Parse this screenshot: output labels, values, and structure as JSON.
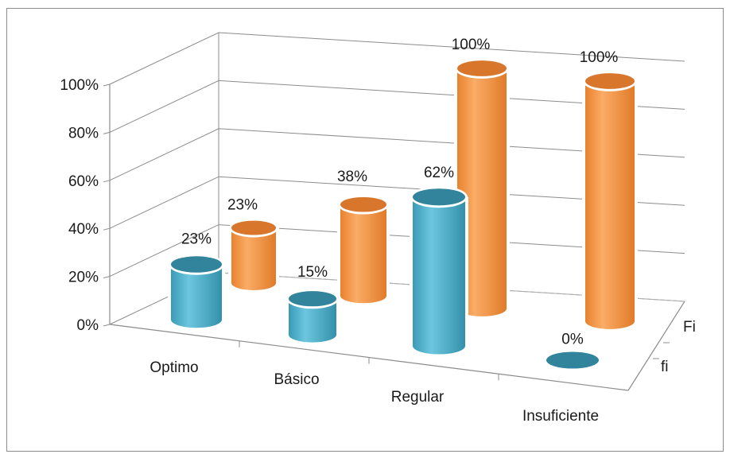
{
  "chart_data": {
    "type": "bar",
    "style": "3d-cylinder",
    "categories": [
      "Optimo",
      "Básico",
      "Regular",
      "Insuficiente"
    ],
    "series": [
      {
        "name": "fi",
        "values": [
          23,
          15,
          62,
          0
        ],
        "labels": [
          "23%",
          "15%",
          "62%",
          "0%"
        ],
        "color": "#4bacc6",
        "top_color": "#31849b"
      },
      {
        "name": "Fi",
        "values": [
          23,
          38,
          100,
          100
        ],
        "labels": [
          "23%",
          "38%",
          "100%",
          "100%"
        ],
        "color": "#f79646",
        "top_color": "#d8772c"
      }
    ],
    "y_ticks": [
      "0%",
      "20%",
      "40%",
      "60%",
      "80%",
      "100%"
    ],
    "ylim": [
      0,
      100
    ],
    "grid": true
  }
}
